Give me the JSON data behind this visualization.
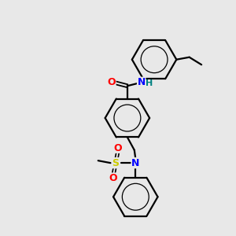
{
  "bg_color": "#e8e8e8",
  "bond_color": "#000000",
  "atom_colors": {
    "N": "#0000ff",
    "O": "#ff0000",
    "S": "#cccc00",
    "H": "#008080",
    "C": "#000000"
  },
  "figsize": [
    3.0,
    3.0
  ],
  "dpi": 100
}
